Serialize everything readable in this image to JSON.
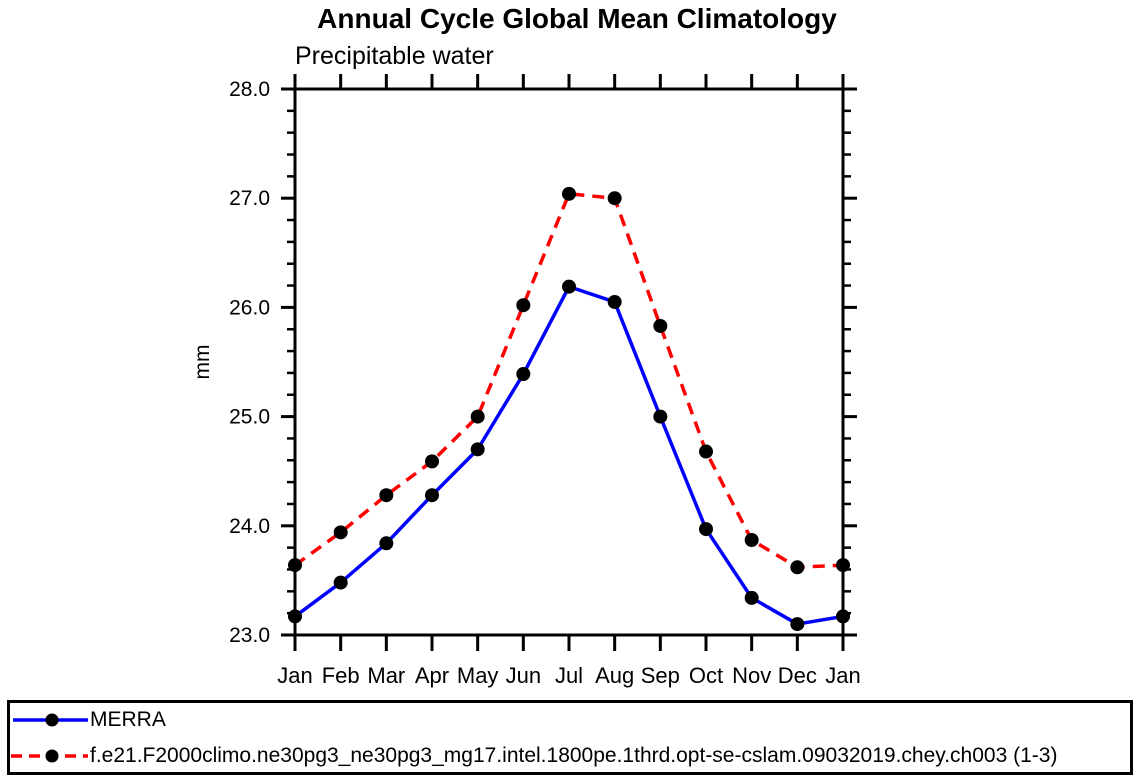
{
  "chart_data": {
    "type": "line",
    "title": "Annual Cycle Global Mean Climatology",
    "subtitle": "Precipitable water",
    "ylabel": "mm",
    "xlabel": "",
    "categories": [
      "Jan",
      "Feb",
      "Mar",
      "Apr",
      "May",
      "Jun",
      "Jul",
      "Aug",
      "Sep",
      "Oct",
      "Nov",
      "Dec",
      "Jan"
    ],
    "ylim": [
      23.0,
      28.0
    ],
    "ytick_labels": [
      "23.0",
      "24.0",
      "25.0",
      "26.0",
      "27.0",
      "28.0"
    ],
    "yticks": [
      23.0,
      24.0,
      25.0,
      26.0,
      27.0,
      28.0
    ],
    "y_minor_step": 0.2,
    "grid": false,
    "legend_position": "bottom",
    "series": [
      {
        "name": "MERRA",
        "color": "#0000ff",
        "line_style": "solid",
        "marker": "circle",
        "marker_color": "#000000",
        "values": [
          23.17,
          23.48,
          23.84,
          24.28,
          24.7,
          25.39,
          26.19,
          26.05,
          25.0,
          23.97,
          23.34,
          23.1,
          23.17
        ]
      },
      {
        "name": "f.e21.F2000climo.ne30pg3_ne30pg3_mg17.intel.1800pe.1thrd.opt-se-cslam.09032019.chey.ch003 (1-3)",
        "color": "#ff0000",
        "line_style": "dashed",
        "marker": "circle",
        "marker_color": "#000000",
        "values": [
          23.64,
          23.94,
          24.28,
          24.59,
          25.0,
          26.02,
          27.04,
          27.0,
          25.83,
          24.68,
          23.87,
          23.62,
          23.64
        ]
      }
    ]
  }
}
